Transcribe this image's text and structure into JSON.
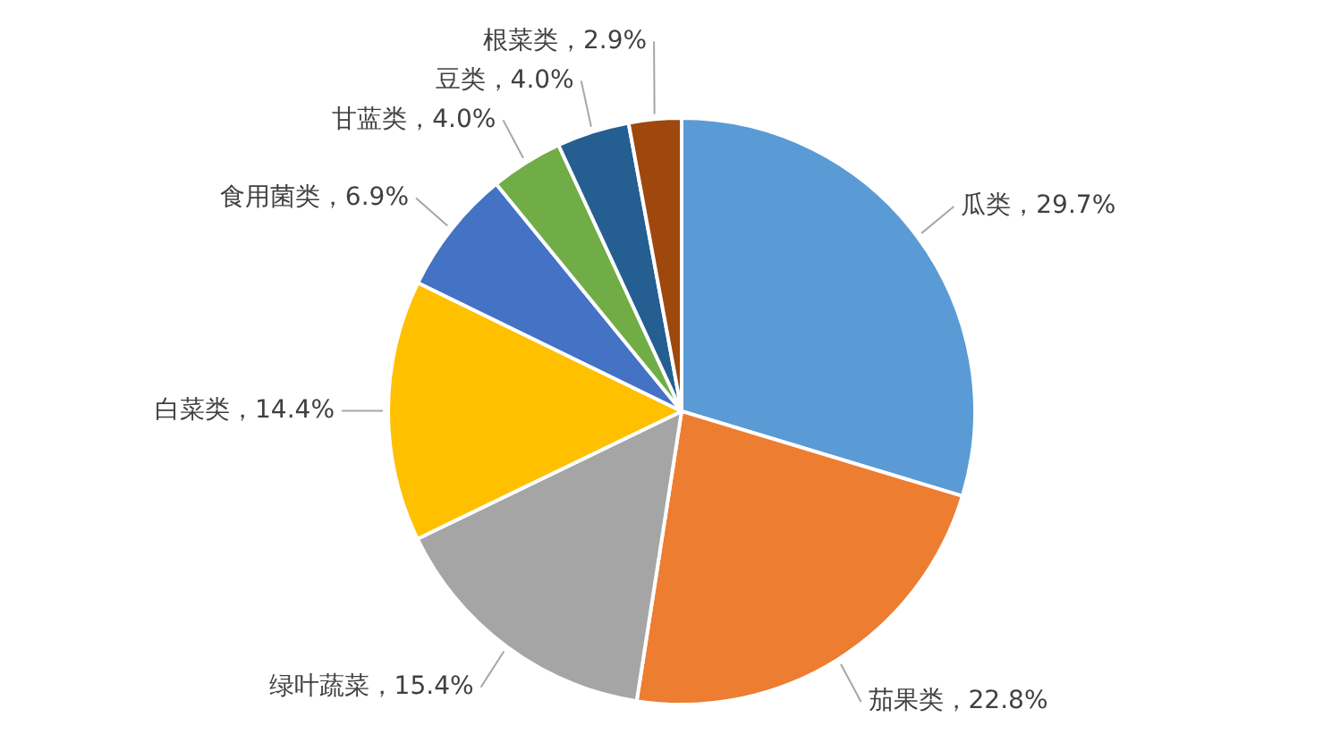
{
  "chart_data": {
    "type": "pie",
    "categories": [
      "瓜类",
      "茄果类",
      "绿叶蔬菜",
      "白菜类",
      "食用菌类",
      "甘蓝类",
      "豆类",
      "根菜类"
    ],
    "values": [
      29.7,
      22.8,
      15.4,
      14.4,
      6.9,
      4.0,
      4.0,
      2.9
    ],
    "colors": [
      "#5b9bd5",
      "#ed7d31",
      "#a5a5a5",
      "#ffc000",
      "#4472c4",
      "#70ad47",
      "#255e91",
      "#9e480e"
    ],
    "value_labels": [
      "29.7%",
      "22.8%",
      "15.4%",
      "14.4%",
      "6.9%",
      "4.0%",
      "4.0%",
      "2.9%"
    ],
    "legend": false
  }
}
